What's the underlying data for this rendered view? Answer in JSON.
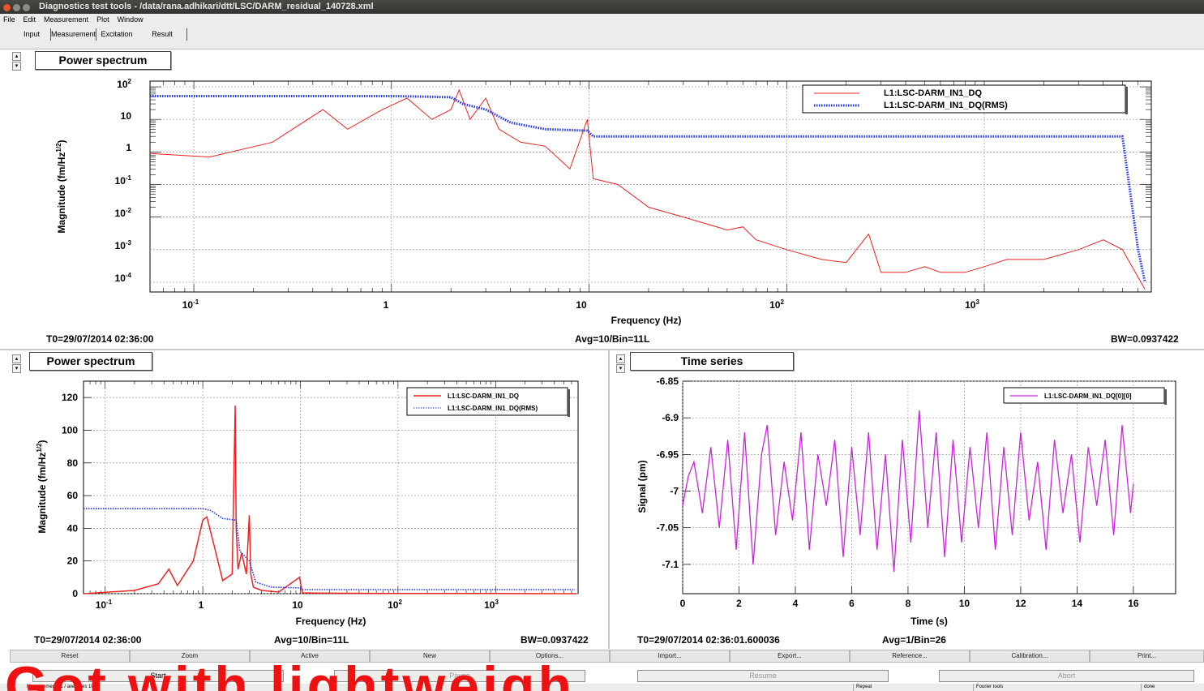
{
  "window": {
    "title": "Diagnostics test tools - /data/rana.adhikari/dtt/LSC/DARM_residual_140728.xml",
    "menu": [
      "File",
      "Edit",
      "Measurement",
      "Plot",
      "Window"
    ],
    "tabs": [
      "Input",
      "Measurement",
      "Excitation",
      "Result"
    ]
  },
  "panels": {
    "top": {
      "title": "Power spectrum",
      "t0": "T0=29/07/2014 02:36:00",
      "avg": "Avg=10/Bin=11L",
      "bw": "BW=0.0937422"
    },
    "bottom_left": {
      "title": "Power spectrum",
      "t0": "T0=29/07/2014 02:36:00",
      "avg": "Avg=10/Bin=11L",
      "bw": "BW=0.0937422"
    },
    "bottom_right": {
      "title": "Time series",
      "t0": "T0=29/07/2014 02:36:01.600036",
      "avg": "Avg=1/Bin=26"
    }
  },
  "chart_data": [
    {
      "type": "line",
      "xscale": "log",
      "yscale": "log",
      "xlim": [
        0.06,
        7000
      ],
      "ylim": [
        5e-05,
        150
      ],
      "xlabel": "Frequency (Hz)",
      "ylabel": "Magnitude (fm/Hz^1/2)",
      "x_ticks": [
        "10^-1",
        "1",
        "10",
        "10^2",
        "10^3"
      ],
      "y_ticks": [
        "10^2",
        "10",
        "1",
        "10^-1",
        "10^-2",
        "10^-3",
        "10^-4"
      ],
      "grid": true,
      "legend": "top-right",
      "series": [
        {
          "name": "L1:LSC-DARM_IN1_DQ",
          "color": "#ee2222",
          "style": "solid",
          "x": [
            0.06,
            0.12,
            0.25,
            0.45,
            0.6,
            0.9,
            1.2,
            1.6,
            2.0,
            2.2,
            2.5,
            3.0,
            3.5,
            4.5,
            6,
            8,
            9.8,
            10.5,
            14,
            20,
            30,
            50,
            60,
            70,
            100,
            150,
            200,
            260,
            300,
            400,
            500,
            600,
            800,
            1000,
            1300,
            2000,
            3000,
            4000,
            5000,
            6500
          ],
          "y": [
            0.9,
            0.7,
            2.0,
            20,
            5,
            20,
            45,
            10,
            20,
            80,
            10,
            45,
            5,
            2,
            1.5,
            0.3,
            10,
            0.15,
            0.1,
            0.02,
            0.01,
            0.004,
            0.005,
            0.002,
            0.001,
            0.0005,
            0.0004,
            0.003,
            0.0002,
            0.0002,
            0.0003,
            0.0002,
            0.0002,
            0.0003,
            0.0005,
            0.0005,
            0.001,
            0.002,
            0.001,
            6e-05
          ]
        },
        {
          "name": "L1:LSC-DARM_IN1_DQ(RMS)",
          "color": "#2233ee",
          "style": "dotted",
          "x": [
            0.06,
            1.0,
            1.5,
            2.0,
            2.3,
            3.0,
            4.0,
            6.0,
            9.8,
            10.5,
            100,
            1000,
            5000,
            6000,
            6500
          ],
          "y": [
            52,
            52,
            50,
            48,
            30,
            20,
            8,
            5,
            4.5,
            3.0,
            3.0,
            3.0,
            3.0,
            0.001,
            0.0001
          ]
        }
      ]
    },
    {
      "type": "line",
      "xscale": "log",
      "xlim": [
        0.06,
        7000
      ],
      "ylim": [
        0,
        130
      ],
      "xlabel": "Frequency (Hz)",
      "ylabel": "Magnitude (fm/Hz^1/2)",
      "x_ticks": [
        "10^-1",
        "1",
        "10",
        "10^2",
        "10^3"
      ],
      "y_ticks": [
        0,
        20,
        40,
        60,
        80,
        100,
        120
      ],
      "grid": true,
      "legend": "top-right",
      "series": [
        {
          "name": "L1:LSC-DARM_IN1_DQ",
          "color": "#ee2222",
          "style": "solid",
          "x": [
            0.06,
            0.2,
            0.35,
            0.45,
            0.55,
            0.8,
            1.0,
            1.1,
            1.3,
            1.6,
            2.0,
            2.15,
            2.2,
            2.3,
            2.5,
            2.8,
            3.0,
            3.1,
            3.3,
            4,
            6,
            9.8,
            10.5,
            20,
            100,
            1000,
            6500
          ],
          "y": [
            0,
            2,
            6,
            15,
            5,
            20,
            45,
            47,
            30,
            8,
            12,
            115,
            40,
            15,
            25,
            12,
            48,
            12,
            4,
            2,
            1,
            10,
            0.5,
            0.3,
            0.1,
            0.1,
            0
          ]
        },
        {
          "name": "L1:LSC-DARM_IN1_DQ(RMS)",
          "color": "#2233ee",
          "style": "dotted",
          "x": [
            0.06,
            1.0,
            1.2,
            1.6,
            2.2,
            2.4,
            3.0,
            3.5,
            5,
            9.8,
            10.5,
            100,
            1000,
            6500
          ],
          "y": [
            52,
            52,
            51,
            46,
            45,
            26,
            20,
            7,
            4,
            3.5,
            2.5,
            2.5,
            2.5,
            2.5
          ]
        }
      ]
    },
    {
      "type": "line",
      "xlim": [
        0,
        17.5
      ],
      "ylim": [
        -7.14,
        -6.85
      ],
      "xlabel": "Time (s)",
      "ylabel": "Signal (pm)",
      "x_ticks": [
        0,
        2,
        4,
        6,
        8,
        10,
        12,
        14,
        16
      ],
      "y_ticks": [
        -6.85,
        -6.9,
        -6.95,
        -7,
        -7.05,
        -7.1
      ],
      "grid": true,
      "legend": "top-right",
      "series": [
        {
          "name": "L1:LSC-DARM_IN1_DQ[0][0]",
          "color": "#cc22dd",
          "style": "solid",
          "x": [
            0,
            0.2,
            0.4,
            0.7,
            1.0,
            1.3,
            1.6,
            1.9,
            2.2,
            2.5,
            2.8,
            3.0,
            3.3,
            3.6,
            3.9,
            4.2,
            4.5,
            4.8,
            5.1,
            5.4,
            5.7,
            6.0,
            6.3,
            6.6,
            6.9,
            7.2,
            7.5,
            7.8,
            8.1,
            8.4,
            8.7,
            9.0,
            9.3,
            9.6,
            9.9,
            10.2,
            10.5,
            10.8,
            11.1,
            11.4,
            11.7,
            12.0,
            12.3,
            12.6,
            12.9,
            13.2,
            13.5,
            13.8,
            14.1,
            14.4,
            14.7,
            15.0,
            15.3,
            15.6,
            15.9,
            16.0
          ],
          "y": [
            -7.02,
            -6.98,
            -6.96,
            -7.03,
            -6.94,
            -7.05,
            -6.93,
            -7.08,
            -6.92,
            -7.1,
            -6.95,
            -6.91,
            -7.06,
            -6.96,
            -7.04,
            -6.92,
            -7.08,
            -6.95,
            -7.02,
            -6.93,
            -7.09,
            -6.94,
            -7.06,
            -6.92,
            -7.08,
            -6.95,
            -7.11,
            -6.93,
            -7.07,
            -6.89,
            -7.05,
            -6.92,
            -7.09,
            -6.93,
            -7.07,
            -6.94,
            -7.05,
            -6.92,
            -7.08,
            -6.94,
            -7.06,
            -6.92,
            -7.04,
            -6.96,
            -7.08,
            -6.93,
            -7.03,
            -6.95,
            -7.07,
            -6.94,
            -7.02,
            -6.93,
            -7.06,
            -6.91,
            -7.03,
            -6.99
          ]
        }
      ]
    }
  ],
  "buttons": {
    "row1": [
      "Reset",
      "Zoom",
      "Active",
      "New",
      "Options...",
      "Import...",
      "Export...",
      "Reference...",
      "Calibration...",
      "Print..."
    ],
    "row2": [
      "Start",
      "Pause",
      "Resume",
      "Abort"
    ]
  },
  "statusbar": {
    "left": "Measurements 1 / averages 10",
    "middle": "Repeat",
    "right1": "Fourier tools",
    "right2": "done"
  },
  "overlay_text": "Got with lightweight"
}
